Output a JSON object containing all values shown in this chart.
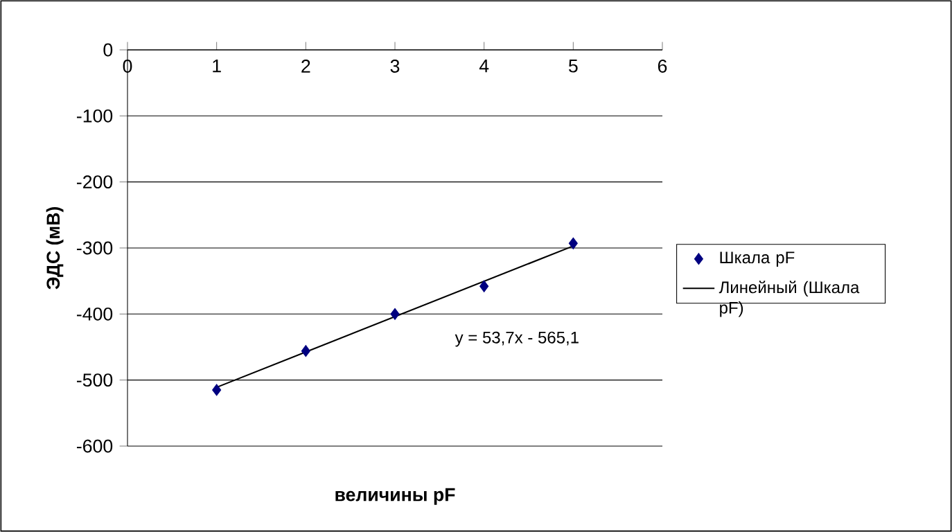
{
  "chart_data": {
    "type": "scatter",
    "xlabel": "величины pF",
    "ylabel": "ЭДС (мВ)",
    "xlim": [
      0,
      6
    ],
    "xticks": [
      0,
      1,
      2,
      3,
      4,
      5,
      6
    ],
    "ylim": [
      -600,
      0
    ],
    "yticks": [
      0,
      -100,
      -200,
      -300,
      -400,
      -500,
      -600
    ],
    "grid": "y",
    "legend": "right",
    "annotations": [
      "y = 53,7x - 565,1"
    ],
    "series": [
      {
        "name": "Шкала pF",
        "color": "#000080",
        "marker": "diamond",
        "x": [
          1,
          2,
          3,
          4,
          5
        ],
        "values": [
          -515,
          -456,
          -400,
          -358,
          -293
        ]
      },
      {
        "name": "Линейный (Шкала pF)",
        "type": "line",
        "color": "#000000",
        "x": [
          1,
          5
        ],
        "values": [
          -511,
          -297
        ]
      }
    ]
  }
}
